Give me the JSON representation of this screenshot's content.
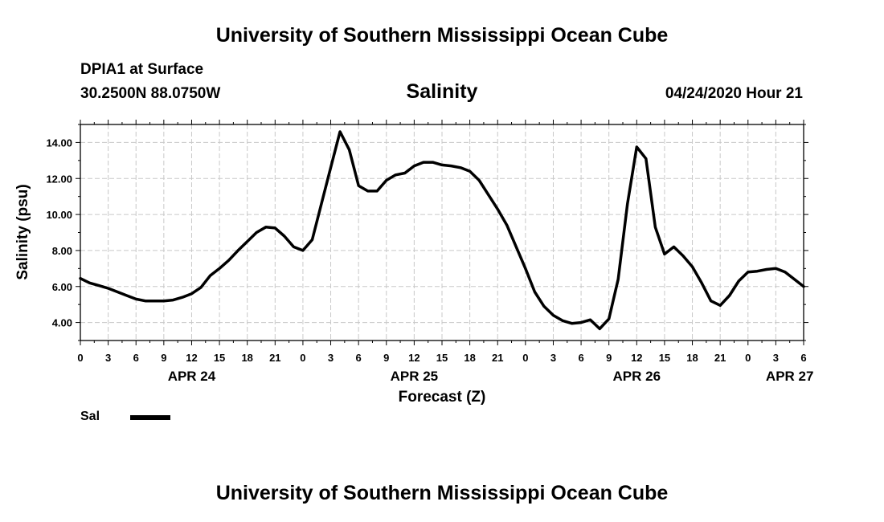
{
  "header": {
    "title": "University of Southern Mississippi Ocean Cube",
    "station": "DPIA1 at Surface",
    "coordinates": "30.2500N 88.0750W",
    "variable": "Salinity",
    "timestamp": "04/24/2020 Hour 21"
  },
  "footer": {
    "title": "University of Southern Mississippi Ocean Cube"
  },
  "legend": {
    "label": "Sal"
  },
  "colors": {
    "line": "#000000",
    "grid": "#c8c8c8",
    "background": "#ffffff"
  },
  "chart_data": {
    "type": "line",
    "title": "Salinity",
    "xlabel": "Forecast (Z)",
    "ylabel": "Salinity (psu)",
    "xlim": [
      0,
      78
    ],
    "ylim": [
      3.0,
      15.0
    ],
    "grid": true,
    "legend_position": "bottom-left",
    "y_ticks": [
      4,
      6,
      8,
      10,
      12,
      14
    ],
    "y_tick_labels": [
      "4.00",
      "6.00",
      "8.00",
      "10.00",
      "12.00",
      "14.00"
    ],
    "x_ticks": [
      0,
      3,
      6,
      9,
      12,
      15,
      18,
      21,
      24,
      27,
      30,
      33,
      36,
      39,
      42,
      45,
      48,
      51,
      54,
      57,
      60,
      63,
      66,
      69,
      72,
      75,
      78
    ],
    "x_tick_labels": [
      "0",
      "3",
      "6",
      "9",
      "12",
      "15",
      "18",
      "21",
      "0",
      "3",
      "6",
      "9",
      "12",
      "15",
      "18",
      "21",
      "0",
      "3",
      "6",
      "9",
      "12",
      "15",
      "18",
      "21",
      "0",
      "3",
      "6"
    ],
    "date_labels": [
      {
        "x": 12,
        "label": "APR 24"
      },
      {
        "x": 36,
        "label": "APR 25"
      },
      {
        "x": 60,
        "label": "APR 26"
      },
      {
        "x": 76.5,
        "label": "APR 27"
      }
    ],
    "series": [
      {
        "name": "Sal",
        "x": [
          0,
          1,
          2,
          3,
          4,
          5,
          6,
          7,
          8,
          9,
          10,
          11,
          12,
          13,
          14,
          15,
          16,
          17,
          18,
          19,
          20,
          21,
          22,
          23,
          24,
          25,
          26,
          27,
          28,
          29,
          30,
          31,
          32,
          33,
          34,
          35,
          36,
          37,
          38,
          39,
          40,
          41,
          42,
          43,
          44,
          45,
          46,
          47,
          48,
          49,
          50,
          51,
          52,
          53,
          54,
          55,
          56,
          57,
          58,
          59,
          60,
          61,
          62,
          63,
          64,
          65,
          66,
          67,
          68,
          69,
          70,
          71,
          72,
          73,
          74,
          75,
          76,
          77,
          78
        ],
        "values": [
          6.45,
          6.2,
          6.05,
          5.9,
          5.7,
          5.5,
          5.3,
          5.2,
          5.2,
          5.2,
          5.25,
          5.4,
          5.6,
          5.95,
          6.6,
          7.0,
          7.45,
          8.0,
          8.5,
          9.0,
          9.3,
          9.25,
          8.8,
          8.2,
          8.0,
          8.6,
          10.6,
          12.6,
          14.6,
          13.6,
          11.6,
          11.3,
          11.3,
          11.9,
          12.2,
          12.3,
          12.7,
          12.9,
          12.9,
          12.75,
          12.7,
          12.6,
          12.4,
          11.9,
          11.1,
          10.3,
          9.4,
          8.2,
          7.0,
          5.7,
          4.9,
          4.4,
          4.1,
          3.95,
          4.0,
          4.15,
          3.65,
          4.2,
          6.4,
          10.6,
          13.75,
          13.1,
          9.3,
          7.8,
          8.2,
          7.7,
          7.1,
          6.2,
          5.2,
          4.95,
          5.5,
          6.3,
          6.8,
          6.85,
          6.95,
          7.0,
          6.8,
          6.4,
          6.0
        ]
      }
    ]
  }
}
